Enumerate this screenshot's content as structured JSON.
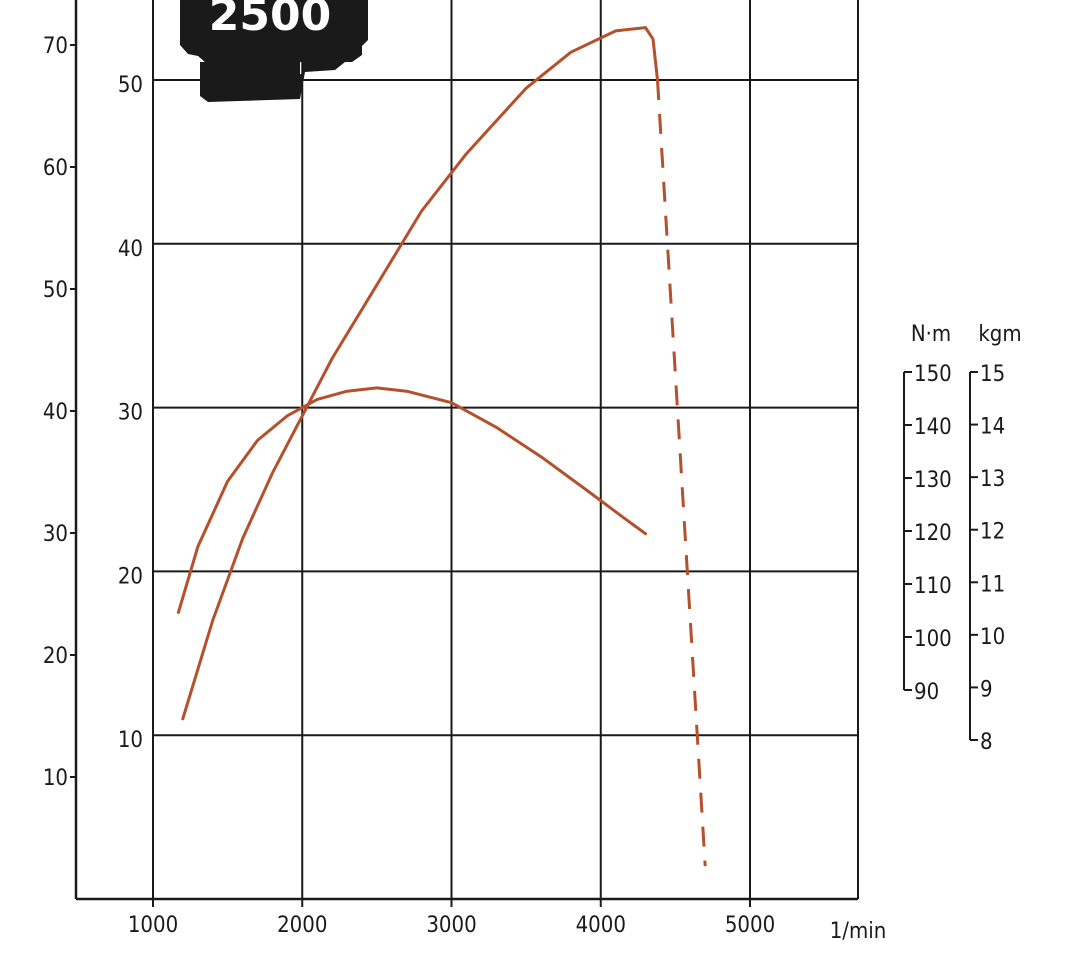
{
  "badge": {
    "text": "2500"
  },
  "colors": {
    "curve": "#b5502c",
    "grid": "#1a1a1a",
    "ink": "#1a1a1a",
    "paper": "#ffffff"
  },
  "chart_data": {
    "type": "line",
    "title": "",
    "xlabel": "1/min",
    "x_ticks": [
      "1000",
      "2000",
      "3000",
      "4000",
      "5000"
    ],
    "xlim": [
      500,
      5500
    ],
    "axes": {
      "outer_left": {
        "ticks": [
          "10",
          "20",
          "30",
          "40",
          "50",
          "60",
          "70"
        ],
        "range": [
          0,
          76
        ]
      },
      "inner_left": {
        "ticks": [
          "10",
          "20",
          "30",
          "40",
          "50"
        ],
        "range": [
          0,
          55
        ]
      },
      "torque_nm": {
        "label": "N·m",
        "ticks": [
          "150",
          "140",
          "130",
          "120",
          "110",
          "100",
          "90"
        ],
        "range": [
          90,
          150
        ]
      },
      "torque_kgm": {
        "label": "kgm",
        "ticks": [
          "15",
          "14",
          "13",
          "12",
          "11",
          "10",
          "9",
          "8"
        ],
        "range": [
          8,
          15
        ]
      }
    },
    "series": [
      {
        "name": "",
        "axis": "inner_left",
        "points": [
          [
            1200,
            11.0
          ],
          [
            1400,
            17.0
          ],
          [
            1600,
            22.0
          ],
          [
            1800,
            26.0
          ],
          [
            2000,
            29.5
          ],
          [
            2200,
            33.0
          ],
          [
            2500,
            37.5
          ],
          [
            2800,
            42.0
          ],
          [
            3100,
            45.5
          ],
          [
            3500,
            49.5
          ],
          [
            3800,
            51.7
          ],
          [
            4100,
            53.0
          ],
          [
            4300,
            53.2
          ],
          [
            4350,
            52.5
          ],
          [
            4380,
            50.0
          ]
        ]
      },
      {
        "name": "",
        "axis": "inner_left",
        "style": "dashed",
        "points": [
          [
            4380,
            50.0
          ],
          [
            4700,
            2.0
          ]
        ]
      },
      {
        "name": "",
        "axis": "inner_left",
        "points": [
          [
            1170,
            17.5
          ],
          [
            1300,
            21.5
          ],
          [
            1500,
            25.5
          ],
          [
            1700,
            28.0
          ],
          [
            1900,
            29.5
          ],
          [
            2100,
            30.5
          ],
          [
            2300,
            31.0
          ],
          [
            2500,
            31.2
          ],
          [
            2700,
            31.0
          ],
          [
            3000,
            30.3
          ],
          [
            3300,
            28.8
          ],
          [
            3600,
            27.0
          ],
          [
            3900,
            25.0
          ],
          [
            4150,
            23.3
          ],
          [
            4300,
            22.3
          ]
        ]
      }
    ]
  }
}
